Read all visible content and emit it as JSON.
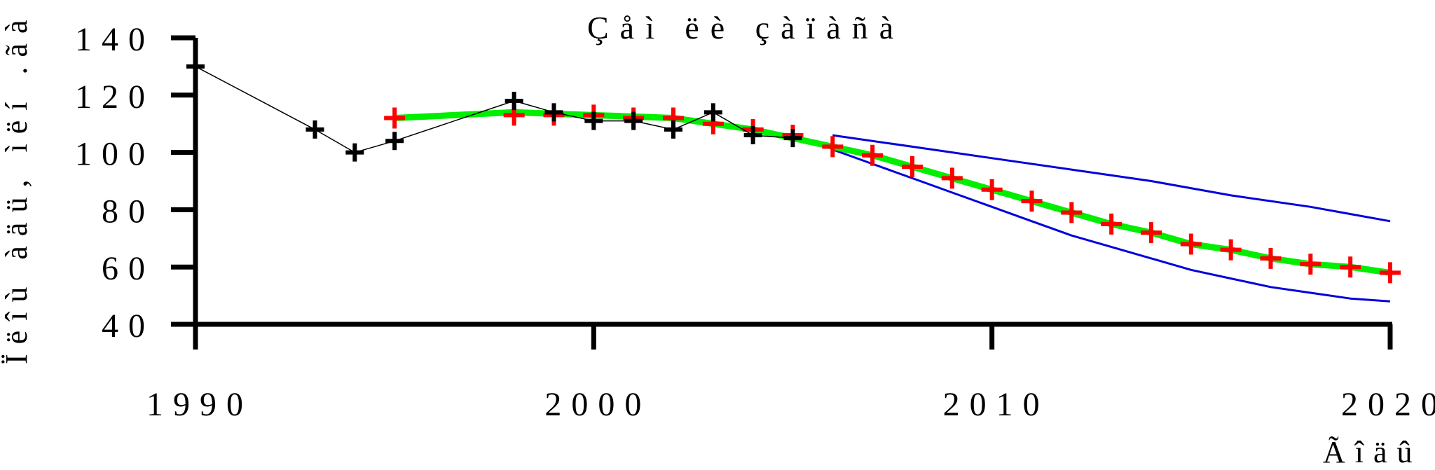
{
  "chart_data": {
    "type": "line",
    "title": "Çåì ëè çàïàñà",
    "xlabel": "Ãîäû",
    "ylabel": "Ïëîù àäü, ìëí .ãà",
    "xlim": [
      1990,
      2020
    ],
    "ylim": [
      40,
      140
    ],
    "xticks": [
      "1990",
      "2000",
      "2010",
      "2020"
    ],
    "yticks": [
      "140",
      "120",
      "100",
      "80",
      "60",
      "40"
    ],
    "grid": false,
    "series": [
      {
        "marker": "plus",
        "color": "#000000",
        "line": true,
        "x": [
          1990,
          1993,
          1994,
          1995,
          1998,
          1999,
          2000,
          2001,
          2002,
          2003,
          2004,
          2005
        ],
        "y": [
          130,
          108,
          100,
          104,
          118,
          114,
          111,
          111,
          108,
          114,
          106,
          105
        ]
      },
      {
        "marker": "plus",
        "color": "#ff0000",
        "line": false,
        "x": [
          1995,
          1998,
          1999,
          2000,
          2001,
          2002,
          2003,
          2004,
          2005,
          2006,
          2007,
          2008,
          2009,
          2010,
          2011,
          2012,
          2013,
          2014,
          2015,
          2016,
          2017,
          2018,
          2019,
          2020
        ],
        "y": [
          112,
          113,
          113,
          113,
          112,
          112,
          110,
          108,
          106,
          102,
          99,
          95,
          91,
          87,
          83,
          79,
          75,
          72,
          68,
          66,
          63,
          61,
          60,
          58
        ]
      },
      {
        "color": "#00ee00",
        "line": true,
        "x": [
          1995,
          1998,
          2000,
          2002,
          2003,
          2004,
          2005,
          2006,
          2007,
          2008,
          2009,
          2010,
          2011,
          2012,
          2013,
          2014,
          2015,
          2016,
          2017,
          2018,
          2019,
          2020
        ],
        "y": [
          112,
          114,
          113,
          112,
          110,
          108,
          105,
          102,
          99,
          95,
          91,
          87,
          83,
          79,
          75,
          72,
          68,
          66,
          63,
          61,
          60,
          58
        ]
      },
      {
        "color": "#0000dd",
        "line": true,
        "x": [
          2006,
          2008,
          2010,
          2012,
          2014,
          2016,
          2018,
          2020
        ],
        "y": [
          106,
          102,
          98,
          94,
          90,
          85,
          81,
          76
        ]
      },
      {
        "color": "#0000dd",
        "line": true,
        "x": [
          2006,
          2007,
          2008,
          2009,
          2010,
          2011,
          2012,
          2013,
          2014,
          2015,
          2016,
          2017,
          2018,
          2019,
          2020
        ],
        "y": [
          101,
          96,
          91,
          86,
          81,
          76,
          71,
          67,
          63,
          59,
          56,
          53,
          51,
          49,
          48
        ]
      }
    ]
  }
}
